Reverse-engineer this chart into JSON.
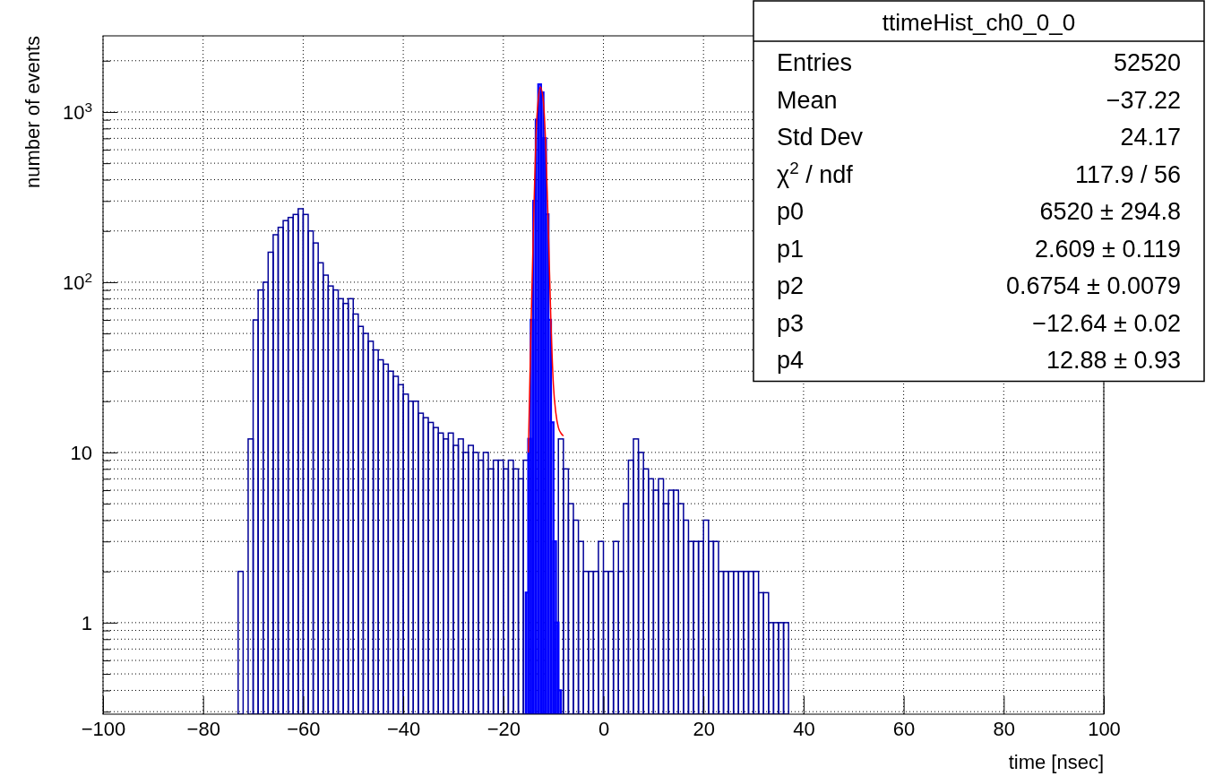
{
  "chart_data": {
    "type": "histogram",
    "title": "ttimeHist_ch0_0_0",
    "xlabel": "time [nsec]",
    "ylabel": "number of events",
    "log": "y",
    "grid": true,
    "xlim": [
      -100,
      100
    ],
    "xticks": [
      -100,
      -80,
      -60,
      -40,
      -20,
      0,
      20,
      40,
      60,
      80,
      100
    ],
    "ylim": [
      0.29,
      2800
    ],
    "yticks": [
      {
        "value": 0.3,
        "label": null
      },
      {
        "value": 0.4,
        "label": null
      },
      {
        "value": 0.5,
        "label": null
      },
      {
        "value": 0.6,
        "label": null
      },
      {
        "value": 0.7,
        "label": null
      },
      {
        "value": 0.8,
        "label": null
      },
      {
        "value": 0.9,
        "label": null
      },
      1,
      {
        "value": 2,
        "label": null
      },
      {
        "value": 3,
        "label": null
      },
      {
        "value": 4,
        "label": null
      },
      {
        "value": 5,
        "label": null
      },
      {
        "value": 6,
        "label": null
      },
      {
        "value": 7,
        "label": null
      },
      {
        "value": 8,
        "label": null
      },
      {
        "value": 9,
        "label": null
      },
      10,
      {
        "value": 20,
        "label": null
      },
      {
        "value": 30,
        "label": null
      },
      {
        "value": 40,
        "label": null
      },
      {
        "value": 50,
        "label": null
      },
      {
        "value": 60,
        "label": null
      },
      {
        "value": 70,
        "label": null
      },
      {
        "value": 80,
        "label": null
      },
      {
        "value": 90,
        "label": null
      },
      {
        "value": 100,
        "label": "10$^{2}$"
      },
      {
        "value": 200,
        "label": null
      },
      {
        "value": 300,
        "label": null
      },
      {
        "value": 400,
        "label": null
      },
      {
        "value": 500,
        "label": null
      },
      {
        "value": 600,
        "label": null
      },
      {
        "value": 700,
        "label": null
      },
      {
        "value": 800,
        "label": null
      },
      {
        "value": 900,
        "label": null
      },
      {
        "value": 1000,
        "label": "10$^{3}$"
      },
      {
        "value": 2000,
        "label": null
      }
    ],
    "series": [
      {
        "color": "#000099",
        "bins": [
          -73,
          -72,
          -71,
          -70,
          -69,
          -68,
          -67,
          -66,
          -65,
          -64,
          -63,
          -62,
          -61,
          -60,
          -59,
          -58,
          -57,
          -56,
          -55,
          -54,
          -53,
          -52,
          -51,
          -50,
          -49,
          -48,
          -47,
          -46,
          -45,
          -44,
          -43,
          -42,
          -41,
          -40,
          -39,
          -38,
          -37,
          -36,
          -35,
          -34,
          -33,
          -32,
          -31,
          -30,
          -29,
          -28,
          -27,
          -26,
          -25,
          -24,
          -23,
          -22,
          -21,
          -20,
          -19,
          -18,
          -17,
          -16,
          -15,
          -14,
          -13,
          -12,
          -11,
          -10,
          -9,
          -8,
          -7,
          -6,
          -5,
          -4,
          -3,
          -2,
          -1,
          0,
          1,
          2,
          3,
          4,
          5,
          6,
          7,
          8,
          9,
          10,
          11,
          12,
          13,
          14,
          15,
          16,
          17,
          18,
          19,
          20,
          21,
          22,
          23,
          24,
          25,
          26,
          27,
          28,
          29,
          30,
          31,
          32,
          33,
          34,
          35,
          36,
          37
        ],
        "values": [
          2,
          null,
          12,
          60,
          90,
          100,
          150,
          190,
          210,
          230,
          240,
          250,
          270,
          250,
          200,
          170,
          130,
          110,
          95,
          90,
          80,
          75,
          80,
          65,
          55,
          50,
          45,
          40,
          35,
          33,
          30,
          28,
          25,
          22,
          20,
          20,
          17,
          16,
          15,
          14,
          13,
          12,
          13,
          11,
          12,
          10,
          11,
          10,
          9,
          10,
          8,
          9,
          9,
          8,
          9,
          8,
          7,
          9,
          null,
          null,
          null,
          null,
          null,
          null,
          12,
          8,
          5,
          4,
          3,
          2,
          2,
          2,
          3,
          2,
          2,
          3,
          2,
          5,
          9,
          12,
          10,
          8,
          7,
          6,
          7,
          5,
          6,
          6,
          5,
          4,
          3,
          3,
          3,
          4,
          3,
          3,
          2,
          2,
          2,
          2,
          2,
          2,
          2,
          2,
          1.5,
          1.5,
          1,
          1,
          1,
          1
        ]
      },
      {
        "color": "#0000ff",
        "bins": [
          -15.5,
          -15,
          -14.5,
          -14,
          -13.5,
          -13,
          -12.5,
          -12,
          -11.5,
          -11,
          -10.5,
          -10,
          -9.5,
          -9,
          -8.5
        ],
        "values": [
          1.5,
          12,
          60,
          300,
          900,
          1450,
          1300,
          700,
          250,
          60,
          15,
          3,
          1,
          0.4
        ]
      },
      {
        "type": "line",
        "color": "#ff0000",
        "x": [
          -15,
          -14.5,
          -14,
          -13.5,
          -13,
          -12.6,
          -12,
          -11.5,
          -11,
          -10.5,
          -10,
          -9.5,
          -9,
          -8.5,
          -8
        ],
        "values": [
          10,
          50,
          200,
          700,
          1200,
          1400,
          1150,
          600,
          200,
          60,
          25,
          17,
          14,
          13,
          12.5
        ]
      }
    ],
    "annotations": [
      "Entries",
      "52520",
      "Mean",
      "−37.22",
      "Std Dev",
      "24.17",
      "χ$^{2}$ / ndf",
      "117.9 / 56",
      "p0",
      "6520 ± 294.8",
      "p1",
      "2.609 ± 0.119",
      "p2",
      "0.6754 ± 0.0079",
      "p3",
      "−12.64 ± 0.02",
      "p4",
      "12.88 ± 0.93"
    ]
  }
}
